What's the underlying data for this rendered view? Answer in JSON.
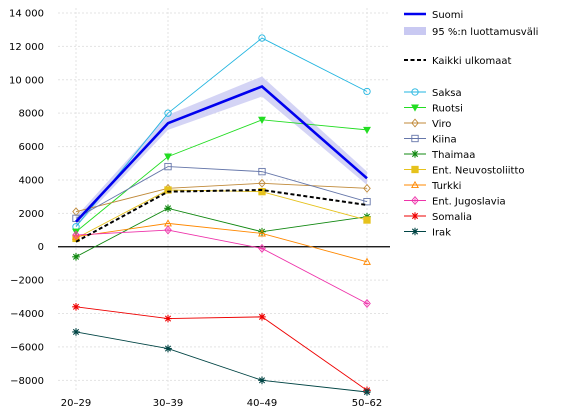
{
  "chart_data": {
    "type": "line",
    "categories": [
      "20–29",
      "30–39",
      "40–49",
      "50–62"
    ],
    "y_ticks": [
      -8000,
      -6000,
      -4000,
      -2000,
      0,
      2000,
      4000,
      6000,
      8000,
      10000,
      12000,
      14000
    ],
    "y_tick_labels": [
      "−8000",
      "−6000",
      "−4000",
      "−2000",
      "0",
      "2000",
      "4000",
      "6000",
      "8000",
      "10 000",
      "12 000",
      "14 000"
    ],
    "ylim": [
      -8700,
      14300
    ],
    "grid": true,
    "legend_position": "right",
    "main_series": {
      "name": "Suomi",
      "values": [
        1500,
        7400,
        9600,
        4100
      ],
      "ci_lower": [
        1200,
        7000,
        9000,
        3700
      ],
      "ci_upper": [
        1800,
        7900,
        10200,
        4500
      ],
      "ci_name": "95 %:n luottamusväli",
      "color": "#0000ee"
    },
    "reference_series": {
      "name": "Kaikki ulkomaat",
      "values": [
        300,
        3300,
        3400,
        2500
      ],
      "color": "#000000"
    },
    "series": [
      {
        "name": "Saksa",
        "values": [
          1200,
          8000,
          12500,
          9300
        ],
        "color": "#22b5e0",
        "marker": "circle"
      },
      {
        "name": "Ruotsi",
        "values": [
          900,
          5400,
          7600,
          7000
        ],
        "color": "#22dd22",
        "marker": "tri_down"
      },
      {
        "name": "Viro",
        "values": [
          2100,
          3500,
          3800,
          3500
        ],
        "color": "#c08a3a",
        "marker": "diamond"
      },
      {
        "name": "Kiina",
        "values": [
          1700,
          4800,
          4500,
          2700
        ],
        "color": "#6677aa",
        "marker": "square"
      },
      {
        "name": "Thaimaa",
        "values": [
          -600,
          2300,
          900,
          1800
        ],
        "color": "#118811",
        "marker": "star"
      },
      {
        "name": "Ent. Neuvostoliitto",
        "values": [
          500,
          3400,
          3300,
          1600
        ],
        "color": "#e6c21c",
        "marker": "filled_square"
      },
      {
        "name": "Turkki",
        "values": [
          600,
          1400,
          800,
          -900
        ],
        "color": "#ff8800",
        "marker": "tri_up"
      },
      {
        "name": "Ent. Jugoslavia",
        "values": [
          700,
          1000,
          -100,
          -3400
        ],
        "color": "#ee33aa",
        "marker": "diamond_star"
      },
      {
        "name": "Somalia",
        "values": [
          -3600,
          -4300,
          -4200,
          -8600
        ],
        "color": "#ee0000",
        "marker": "star"
      },
      {
        "name": "Irak",
        "values": [
          -5100,
          -6100,
          -8000,
          -8700
        ],
        "color": "#004444",
        "marker": "star"
      }
    ]
  }
}
